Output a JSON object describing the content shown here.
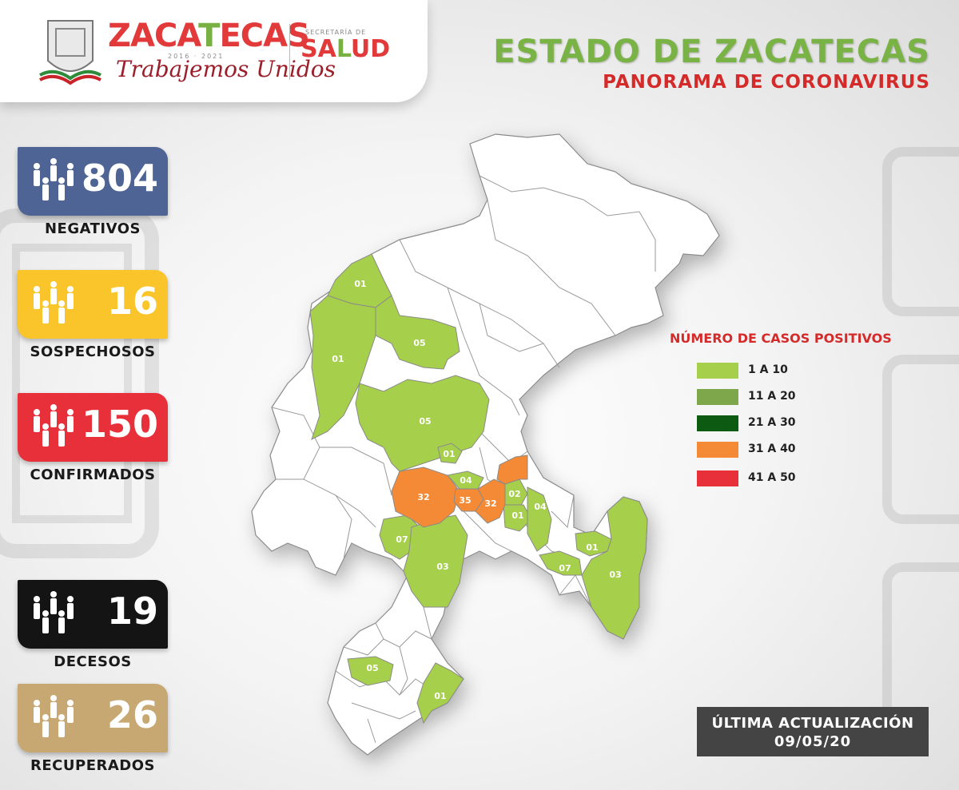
{
  "header": {
    "logo_zac_1": "ZACA",
    "logo_zac_2": "T",
    "logo_zac_3": "ECAS",
    "logo_years": "2016 · 2021",
    "logo_sub": "Trabajemos Unidos",
    "salud_top": "SECRETARÍA DE",
    "salud_1": "SA",
    "salud_2": "L",
    "salud_3": "UD",
    "title_main": "ESTADO DE ZACATECAS",
    "title_sub": "PANORAMA DE CORONAVIRUS"
  },
  "stats": [
    {
      "value": "804",
      "label": "NEGATIVOS",
      "color": "#4e6494"
    },
    {
      "value": "16",
      "label": "SOSPECHOSOS",
      "color": "#f9c52a"
    },
    {
      "value": "150",
      "label": "CONFIRMADOS",
      "color": "#e8303a"
    },
    {
      "value": "19",
      "label": "DECESOS",
      "color": "#141414"
    },
    {
      "value": "26",
      "label": "RECUPERADOS",
      "color": "#c8a872"
    }
  ],
  "legend": {
    "title": "NÚMERO DE CASOS POSITIVOS",
    "items": [
      {
        "label": "1 A 10",
        "color": "#a6cf4c"
      },
      {
        "label": "11 A 20",
        "color": "#7ea64a"
      },
      {
        "label": "21 A 30",
        "color": "#0d5a12"
      },
      {
        "label": "31 A 40",
        "color": "#f48a35"
      },
      {
        "label": "41 A 50",
        "color": "#e8303a"
      }
    ]
  },
  "map": {
    "colors": {
      "white": "#ffffff",
      "green": "#a6cf4c",
      "orange": "#f48a35",
      "border": "#8a8a8a"
    },
    "labels": [
      "01",
      "01",
      "05",
      "05",
      "01",
      "04",
      "32",
      "35",
      "32",
      "02",
      "01",
      "04",
      "07",
      "03",
      "01",
      "07",
      "03",
      "05",
      "01"
    ]
  },
  "update": {
    "line1": "ÚLTIMA ACTUALIZACIÓN",
    "line2": "09/05/20"
  }
}
